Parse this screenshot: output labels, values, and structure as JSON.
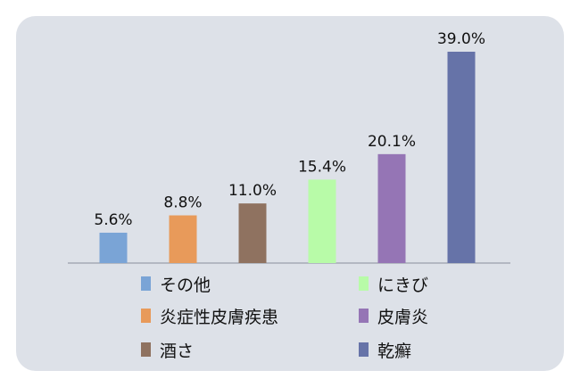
{
  "chart_data": {
    "type": "bar",
    "categories": [
      "その他",
      "炎症性皮膚疾患",
      "酒さ",
      "にきび",
      "皮膚炎",
      "乾癬"
    ],
    "values": [
      5.6,
      8.8,
      11.0,
      15.4,
      20.1,
      39.0
    ],
    "value_labels": [
      "5.6%",
      "8.8%",
      "11.0%",
      "15.4%",
      "20.1%",
      "39.0%"
    ],
    "colors": [
      "#7aa4d6",
      "#e89a5a",
      "#8f7260",
      "#b8fba8",
      "#9575b5",
      "#6673a8"
    ],
    "ylim": [
      0,
      40
    ],
    "grid": false,
    "legend_placement": "bottom",
    "title": "",
    "xlabel": "",
    "ylabel": ""
  }
}
